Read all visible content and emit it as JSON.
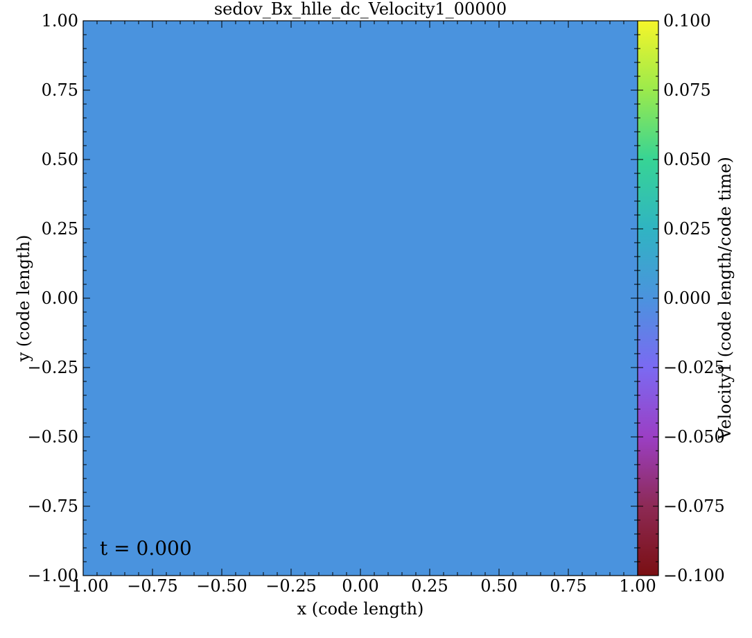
{
  "chart_data": {
    "type": "heatmap",
    "title": "sedov_Bx_hlle_dc_Velocity1_00000",
    "xlabel": "x  (code length)",
    "ylabel": "y  (code length)",
    "xlim": [
      -1.0,
      1.0
    ],
    "ylim": [
      -1.0,
      1.0
    ],
    "x_ticks": [
      -1.0,
      -0.75,
      -0.5,
      -0.25,
      0.0,
      0.25,
      0.5,
      0.75,
      1.0
    ],
    "y_ticks": [
      -1.0,
      -0.75,
      -0.5,
      -0.25,
      0.0,
      0.25,
      0.5,
      0.75,
      1.0
    ],
    "x_tick_labels": [
      "−1.00",
      "−0.75",
      "−0.50",
      "−0.25",
      "0.00",
      "0.25",
      "0.50",
      "0.75",
      "1.00"
    ],
    "y_tick_labels": [
      "−1.00",
      "−0.75",
      "−0.50",
      "−0.25",
      "0.00",
      "0.25",
      "0.50",
      "0.75",
      "1.00"
    ],
    "field_value": 0.0,
    "field_color": "#4a93de",
    "annotation": "t = 0.000",
    "annotation_color": "#ffffff",
    "grid": false,
    "colorbar": {
      "label": "Velocity1  (code length/code time)",
      "range": [
        -0.1,
        0.1
      ],
      "ticks": [
        -0.1,
        -0.075,
        -0.05,
        -0.025,
        0.0,
        0.025,
        0.05,
        0.075,
        0.1
      ],
      "tick_labels": [
        "−0.100",
        "−0.075",
        "−0.050",
        "−0.025",
        "0.000",
        "0.025",
        "0.050",
        "0.075",
        "0.100"
      ],
      "colormap": [
        {
          "value": -0.1,
          "color": "#7a0f12"
        },
        {
          "value": -0.075,
          "color": "#8d2a55"
        },
        {
          "value": -0.05,
          "color": "#9b3fc4"
        },
        {
          "value": -0.025,
          "color": "#7b6af2"
        },
        {
          "value": 0.0,
          "color": "#4b93de"
        },
        {
          "value": 0.025,
          "color": "#30b4c2"
        },
        {
          "value": 0.05,
          "color": "#37d495"
        },
        {
          "value": 0.075,
          "color": "#9bea4c"
        },
        {
          "value": 0.1,
          "color": "#f5f52a"
        }
      ]
    }
  }
}
